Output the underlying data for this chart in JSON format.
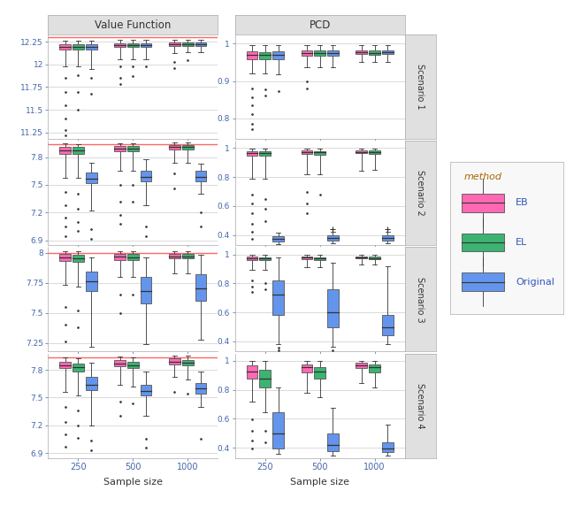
{
  "scenarios": [
    "Scenario 1",
    "Scenario 2",
    "Scenario 3",
    "Scenario 4"
  ],
  "sample_sizes": [
    250,
    500,
    1000
  ],
  "methods": [
    "EB",
    "EL",
    "Original"
  ],
  "colors": {
    "EB": "#FF69B4",
    "EL": "#3CB371",
    "Original": "#6495ED"
  },
  "red_line": {
    "Scenario 1": 12.295,
    "Scenario 2": 7.935,
    "Scenario 3": 8.0,
    "Scenario 4": 7.935
  },
  "vf_ylims": {
    "Scenario 1": [
      11.18,
      12.33
    ],
    "Scenario 2": [
      6.85,
      7.975
    ],
    "Scenario 3": [
      7.18,
      8.045
    ],
    "Scenario 4": [
      6.85,
      7.975
    ]
  },
  "pcd_ylims": {
    "Scenario 1": [
      0.745,
      1.025
    ],
    "Scenario 2": [
      0.33,
      1.05
    ],
    "Scenario 3": [
      0.33,
      1.05
    ],
    "Scenario 4": [
      0.33,
      1.05
    ]
  },
  "vf_yticks": {
    "Scenario 1": [
      11.25,
      11.5,
      11.75,
      12.0,
      12.25
    ],
    "Scenario 2": [
      6.9,
      7.2,
      7.5,
      7.8
    ],
    "Scenario 3": [
      7.25,
      7.5,
      7.75,
      8.0
    ],
    "Scenario 4": [
      6.9,
      7.2,
      7.5,
      7.8
    ]
  },
  "pcd_yticks": {
    "Scenario 1": [
      0.8,
      0.9,
      1.0
    ],
    "Scenario 2": [
      0.4,
      0.6,
      0.8,
      1.0
    ],
    "Scenario 3": [
      0.4,
      0.6,
      0.8,
      1.0
    ],
    "Scenario 4": [
      0.4,
      0.6,
      0.8,
      1.0
    ]
  },
  "vf_data": {
    "Scenario 1": {
      "250": {
        "EB": {
          "q1": 12.16,
          "med": 12.19,
          "q3": 12.22,
          "whislo": 11.98,
          "whishi": 12.26,
          "fliers_lo": [
            11.85,
            11.7,
            11.55,
            11.4,
            11.28,
            11.22
          ],
          "fliers_hi": []
        },
        "EL": {
          "q1": 12.16,
          "med": 12.19,
          "q3": 12.22,
          "whislo": 11.98,
          "whishi": 12.26,
          "fliers_lo": [
            11.88,
            11.7,
            11.5
          ],
          "fliers_hi": []
        },
        "Original": {
          "q1": 12.16,
          "med": 12.19,
          "q3": 12.22,
          "whislo": 11.95,
          "whishi": 12.26,
          "fliers_lo": [
            11.85,
            11.68
          ],
          "fliers_hi": []
        }
      },
      "500": {
        "EB": {
          "q1": 12.19,
          "med": 12.21,
          "q3": 12.23,
          "whislo": 12.06,
          "whishi": 12.27,
          "fliers_lo": [
            11.98,
            11.85,
            11.78
          ],
          "fliers_hi": []
        },
        "EL": {
          "q1": 12.19,
          "med": 12.21,
          "q3": 12.23,
          "whislo": 12.06,
          "whishi": 12.27,
          "fliers_lo": [
            11.98,
            11.87
          ],
          "fliers_hi": []
        },
        "Original": {
          "q1": 12.19,
          "med": 12.21,
          "q3": 12.23,
          "whislo": 12.06,
          "whishi": 12.27,
          "fliers_lo": [
            11.98
          ],
          "fliers_hi": []
        }
      },
      "1000": {
        "EB": {
          "q1": 12.2,
          "med": 12.22,
          "q3": 12.24,
          "whislo": 12.12,
          "whishi": 12.27,
          "fliers_lo": [
            12.03,
            11.96
          ],
          "fliers_hi": []
        },
        "EL": {
          "q1": 12.2,
          "med": 12.22,
          "q3": 12.24,
          "whislo": 12.13,
          "whishi": 12.27,
          "fliers_lo": [
            12.05
          ],
          "fliers_hi": []
        },
        "Original": {
          "q1": 12.2,
          "med": 12.22,
          "q3": 12.24,
          "whislo": 12.13,
          "whishi": 12.27,
          "fliers_lo": [],
          "fliers_hi": []
        }
      }
    },
    "Scenario 2": {
      "250": {
        "EB": {
          "q1": 7.83,
          "med": 7.87,
          "q3": 7.91,
          "whislo": 7.58,
          "whishi": 7.95,
          "fliers_lo": [
            7.42,
            7.28,
            7.15,
            7.05,
            6.95
          ],
          "fliers_hi": []
        },
        "EL": {
          "q1": 7.83,
          "med": 7.87,
          "q3": 7.91,
          "whislo": 7.58,
          "whishi": 7.94,
          "fliers_lo": [
            7.4,
            7.24,
            7.1,
            7.0
          ],
          "fliers_hi": []
        },
        "Original": {
          "q1": 7.52,
          "med": 7.57,
          "q3": 7.63,
          "whislo": 7.22,
          "whishi": 7.74,
          "fliers_lo": [
            7.02,
            6.92
          ],
          "fliers_hi": []
        }
      },
      "500": {
        "EB": {
          "q1": 7.86,
          "med": 7.89,
          "q3": 7.92,
          "whislo": 7.65,
          "whishi": 7.95,
          "fliers_lo": [
            7.5,
            7.32,
            7.18,
            7.08
          ],
          "fliers_hi": []
        },
        "EL": {
          "q1": 7.86,
          "med": 7.89,
          "q3": 7.92,
          "whislo": 7.65,
          "whishi": 7.95,
          "fliers_lo": [
            7.5,
            7.32
          ],
          "fliers_hi": []
        },
        "Original": {
          "q1": 7.54,
          "med": 7.59,
          "q3": 7.65,
          "whislo": 7.28,
          "whishi": 7.78,
          "fliers_lo": [
            7.05,
            6.95
          ],
          "fliers_hi": []
        }
      },
      "1000": {
        "EB": {
          "q1": 7.88,
          "med": 7.91,
          "q3": 7.93,
          "whislo": 7.74,
          "whishi": 7.96,
          "fliers_lo": [
            7.62,
            7.46
          ],
          "fliers_hi": []
        },
        "EL": {
          "q1": 7.88,
          "med": 7.91,
          "q3": 7.93,
          "whislo": 7.74,
          "whishi": 7.96,
          "fliers_lo": [],
          "fliers_hi": []
        },
        "Original": {
          "q1": 7.54,
          "med": 7.59,
          "q3": 7.65,
          "whislo": 7.4,
          "whishi": 7.73,
          "fliers_lo": [
            7.2,
            7.05
          ],
          "fliers_hi": []
        }
      }
    },
    "Scenario 3": {
      "250": {
        "EB": {
          "q1": 7.93,
          "med": 7.96,
          "q3": 7.99,
          "whislo": 7.73,
          "whishi": 8.01,
          "fliers_lo": [
            7.55,
            7.4,
            7.26
          ],
          "fliers_hi": []
        },
        "EL": {
          "q1": 7.92,
          "med": 7.95,
          "q3": 7.98,
          "whislo": 7.72,
          "whishi": 8.01,
          "fliers_lo": [
            7.52,
            7.38
          ],
          "fliers_hi": []
        },
        "Original": {
          "q1": 7.68,
          "med": 7.76,
          "q3": 7.84,
          "whislo": 7.22,
          "whishi": 7.96,
          "fliers_lo": [
            7.06,
            6.96
          ],
          "fliers_hi": []
        }
      },
      "500": {
        "EB": {
          "q1": 7.94,
          "med": 7.97,
          "q3": 7.99,
          "whislo": 7.8,
          "whishi": 8.01,
          "fliers_lo": [
            7.65,
            7.5
          ],
          "fliers_hi": []
        },
        "EL": {
          "q1": 7.94,
          "med": 7.96,
          "q3": 7.99,
          "whislo": 7.8,
          "whishi": 8.01,
          "fliers_lo": [
            7.65
          ],
          "fliers_hi": []
        },
        "Original": {
          "q1": 7.58,
          "med": 7.68,
          "q3": 7.8,
          "whislo": 7.24,
          "whishi": 7.96,
          "fliers_lo": [
            7.06,
            6.93
          ],
          "fliers_hi": []
        }
      },
      "1000": {
        "EB": {
          "q1": 7.95,
          "med": 7.97,
          "q3": 7.99,
          "whislo": 7.83,
          "whishi": 8.01,
          "fliers_lo": [],
          "fliers_hi": []
        },
        "EL": {
          "q1": 7.95,
          "med": 7.97,
          "q3": 7.99,
          "whislo": 7.83,
          "whishi": 8.01,
          "fliers_lo": [],
          "fliers_hi": []
        },
        "Original": {
          "q1": 7.6,
          "med": 7.7,
          "q3": 7.82,
          "whislo": 7.28,
          "whishi": 7.98,
          "fliers_lo": [
            7.06
          ],
          "fliers_hi": []
        }
      }
    },
    "Scenario 4": {
      "250": {
        "EB": {
          "q1": 7.82,
          "med": 7.85,
          "q3": 7.89,
          "whislo": 7.56,
          "whishi": 7.93,
          "fliers_lo": [
            7.4,
            7.24,
            7.1,
            6.97
          ],
          "fliers_hi": []
        },
        "EL": {
          "q1": 7.78,
          "med": 7.83,
          "q3": 7.87,
          "whislo": 7.52,
          "whishi": 7.92,
          "fliers_lo": [
            7.36,
            7.2,
            7.07
          ],
          "fliers_hi": []
        },
        "Original": {
          "q1": 7.58,
          "med": 7.64,
          "q3": 7.72,
          "whislo": 7.2,
          "whishi": 7.88,
          "fliers_lo": [
            7.04,
            6.93
          ],
          "fliers_hi": []
        }
      },
      "500": {
        "EB": {
          "q1": 7.84,
          "med": 7.87,
          "q3": 7.91,
          "whislo": 7.64,
          "whishi": 7.94,
          "fliers_lo": [
            7.46,
            7.3
          ],
          "fliers_hi": []
        },
        "EL": {
          "q1": 7.82,
          "med": 7.85,
          "q3": 7.89,
          "whislo": 7.62,
          "whishi": 7.93,
          "fliers_lo": [
            7.44
          ],
          "fliers_hi": []
        },
        "Original": {
          "q1": 7.52,
          "med": 7.57,
          "q3": 7.64,
          "whislo": 7.3,
          "whishi": 7.78,
          "fliers_lo": [
            7.06,
            6.96
          ],
          "fliers_hi": []
        }
      },
      "1000": {
        "EB": {
          "q1": 7.86,
          "med": 7.89,
          "q3": 7.92,
          "whislo": 7.72,
          "whishi": 7.95,
          "fliers_lo": [
            7.56
          ],
          "fliers_hi": []
        },
        "EL": {
          "q1": 7.85,
          "med": 7.88,
          "q3": 7.91,
          "whislo": 7.7,
          "whishi": 7.95,
          "fliers_lo": [
            7.54
          ],
          "fliers_hi": []
        },
        "Original": {
          "q1": 7.54,
          "med": 7.6,
          "q3": 7.66,
          "whislo": 7.4,
          "whishi": 7.78,
          "fliers_lo": [
            7.06
          ],
          "fliers_hi": []
        }
      }
    }
  },
  "pcd_data": {
    "Scenario 1": {
      "250": {
        "EB": {
          "q1": 0.958,
          "med": 0.97,
          "q3": 0.98,
          "whislo": 0.92,
          "whishi": 0.997,
          "fliers_lo": [
            0.88,
            0.856,
            0.835,
            0.812,
            0.786,
            0.77
          ],
          "fliers_hi": []
        },
        "EL": {
          "q1": 0.958,
          "med": 0.969,
          "q3": 0.978,
          "whislo": 0.92,
          "whishi": 0.996,
          "fliers_lo": [
            0.878,
            0.86
          ],
          "fliers_hi": []
        },
        "Original": {
          "q1": 0.958,
          "med": 0.97,
          "q3": 0.98,
          "whislo": 0.918,
          "whishi": 0.997,
          "fliers_lo": [
            0.874
          ],
          "fliers_hi": []
        }
      },
      "500": {
        "EB": {
          "q1": 0.968,
          "med": 0.975,
          "q3": 0.982,
          "whislo": 0.938,
          "whishi": 0.997,
          "fliers_lo": [
            0.9,
            0.88
          ],
          "fliers_hi": []
        },
        "EL": {
          "q1": 0.967,
          "med": 0.974,
          "q3": 0.981,
          "whislo": 0.938,
          "whishi": 0.996,
          "fliers_lo": [],
          "fliers_hi": []
        },
        "Original": {
          "q1": 0.968,
          "med": 0.975,
          "q3": 0.982,
          "whislo": 0.938,
          "whishi": 0.997,
          "fliers_lo": [],
          "fliers_hi": []
        }
      },
      "1000": {
        "EB": {
          "q1": 0.972,
          "med": 0.977,
          "q3": 0.983,
          "whislo": 0.95,
          "whishi": 0.997,
          "fliers_lo": [],
          "fliers_hi": []
        },
        "EL": {
          "q1": 0.971,
          "med": 0.976,
          "q3": 0.982,
          "whislo": 0.95,
          "whishi": 0.996,
          "fliers_lo": [],
          "fliers_hi": []
        },
        "Original": {
          "q1": 0.972,
          "med": 0.977,
          "q3": 0.983,
          "whislo": 0.95,
          "whishi": 0.997,
          "fliers_lo": [],
          "fliers_hi": []
        }
      }
    },
    "Scenario 2": {
      "250": {
        "EB": {
          "q1": 0.95,
          "med": 0.968,
          "q3": 0.98,
          "whislo": 0.79,
          "whishi": 0.997,
          "fliers_lo": [
            0.68,
            0.618,
            0.548,
            0.48,
            0.42,
            0.375
          ],
          "fliers_hi": []
        },
        "EL": {
          "q1": 0.948,
          "med": 0.964,
          "q3": 0.978,
          "whislo": 0.79,
          "whishi": 0.996,
          "fliers_lo": [
            0.648,
            0.578,
            0.498
          ],
          "fliers_hi": []
        },
        "Original": {
          "q1": 0.355,
          "med": 0.374,
          "q3": 0.394,
          "whislo": 0.338,
          "whishi": 0.414,
          "fliers_lo": [],
          "fliers_hi": []
        }
      },
      "500": {
        "EB": {
          "q1": 0.958,
          "med": 0.972,
          "q3": 0.982,
          "whislo": 0.822,
          "whishi": 0.997,
          "fliers_lo": [
            0.7,
            0.618,
            0.548
          ],
          "fliers_hi": []
        },
        "EL": {
          "q1": 0.956,
          "med": 0.969,
          "q3": 0.98,
          "whislo": 0.82,
          "whishi": 0.996,
          "fliers_lo": [
            0.678
          ],
          "fliers_hi": []
        },
        "Original": {
          "q1": 0.362,
          "med": 0.377,
          "q3": 0.397,
          "whislo": 0.342,
          "whishi": 0.42,
          "fliers_lo": [],
          "fliers_hi": [
            0.44
          ]
        }
      },
      "1000": {
        "EB": {
          "q1": 0.963,
          "med": 0.974,
          "q3": 0.983,
          "whislo": 0.846,
          "whishi": 0.997,
          "fliers_lo": [],
          "fliers_hi": []
        },
        "EL": {
          "q1": 0.961,
          "med": 0.972,
          "q3": 0.981,
          "whislo": 0.847,
          "whishi": 0.996,
          "fliers_lo": [],
          "fliers_hi": []
        },
        "Original": {
          "q1": 0.364,
          "med": 0.379,
          "q3": 0.399,
          "whislo": 0.344,
          "whishi": 0.424,
          "fliers_lo": [],
          "fliers_hi": [
            0.44
          ]
        }
      }
    },
    "Scenario 3": {
      "250": {
        "EB": {
          "q1": 0.964,
          "med": 0.975,
          "q3": 0.984,
          "whislo": 0.895,
          "whishi": 0.998,
          "fliers_lo": [
            0.82,
            0.778,
            0.742
          ],
          "fliers_hi": []
        },
        "EL": {
          "q1": 0.961,
          "med": 0.971,
          "q3": 0.981,
          "whislo": 0.891,
          "whishi": 0.997,
          "fliers_lo": [
            0.8,
            0.76
          ],
          "fliers_hi": []
        },
        "Original": {
          "q1": 0.58,
          "med": 0.72,
          "q3": 0.82,
          "whislo": 0.38,
          "whishi": 0.978,
          "fliers_lo": [
            0.358,
            0.34
          ],
          "fliers_hi": []
        }
      },
      "500": {
        "EB": {
          "q1": 0.968,
          "med": 0.977,
          "q3": 0.985,
          "whislo": 0.913,
          "whishi": 0.998,
          "fliers_lo": [],
          "fliers_hi": []
        },
        "EL": {
          "q1": 0.964,
          "med": 0.974,
          "q3": 0.982,
          "whislo": 0.911,
          "whishi": 0.997,
          "fliers_lo": [],
          "fliers_hi": []
        },
        "Original": {
          "q1": 0.5,
          "med": 0.6,
          "q3": 0.76,
          "whislo": 0.36,
          "whishi": 0.94,
          "fliers_lo": [
            0.34
          ],
          "fliers_hi": []
        }
      },
      "1000": {
        "EB": {
          "q1": 0.971,
          "med": 0.979,
          "q3": 0.987,
          "whislo": 0.93,
          "whishi": 0.998,
          "fliers_lo": [],
          "fliers_hi": []
        },
        "EL": {
          "q1": 0.969,
          "med": 0.976,
          "q3": 0.984,
          "whislo": 0.929,
          "whishi": 0.997,
          "fliers_lo": [],
          "fliers_hi": []
        },
        "Original": {
          "q1": 0.44,
          "med": 0.5,
          "q3": 0.58,
          "whislo": 0.38,
          "whishi": 0.92,
          "fliers_lo": [],
          "fliers_hi": []
        }
      }
    },
    "Scenario 4": {
      "250": {
        "EB": {
          "q1": 0.878,
          "med": 0.928,
          "q3": 0.968,
          "whislo": 0.72,
          "whishi": 0.997,
          "fliers_lo": [
            0.598,
            0.518,
            0.448,
            0.398
          ],
          "fliers_hi": []
        },
        "EL": {
          "q1": 0.818,
          "med": 0.878,
          "q3": 0.938,
          "whislo": 0.648,
          "whishi": 0.997,
          "fliers_lo": [
            0.518,
            0.438
          ],
          "fliers_hi": []
        },
        "Original": {
          "q1": 0.398,
          "med": 0.498,
          "q3": 0.648,
          "whislo": 0.358,
          "whishi": 0.818,
          "fliers_lo": [],
          "fliers_hi": []
        }
      },
      "500": {
        "EB": {
          "q1": 0.918,
          "med": 0.958,
          "q3": 0.977,
          "whislo": 0.778,
          "whishi": 0.998,
          "fliers_lo": [],
          "fliers_hi": []
        },
        "EL": {
          "q1": 0.878,
          "med": 0.928,
          "q3": 0.958,
          "whislo": 0.748,
          "whishi": 0.997,
          "fliers_lo": [],
          "fliers_hi": []
        },
        "Original": {
          "q1": 0.378,
          "med": 0.418,
          "q3": 0.498,
          "whislo": 0.348,
          "whishi": 0.678,
          "fliers_lo": [],
          "fliers_hi": []
        }
      },
      "1000": {
        "EB": {
          "q1": 0.948,
          "med": 0.968,
          "q3": 0.984,
          "whislo": 0.848,
          "whishi": 0.998,
          "fliers_lo": [],
          "fliers_hi": []
        },
        "EL": {
          "q1": 0.918,
          "med": 0.954,
          "q3": 0.974,
          "whislo": 0.818,
          "whishi": 0.997,
          "fliers_lo": [],
          "fliers_hi": []
        },
        "Original": {
          "q1": 0.368,
          "med": 0.398,
          "q3": 0.438,
          "whislo": 0.344,
          "whishi": 0.558,
          "fliers_lo": [],
          "fliers_hi": []
        }
      }
    }
  }
}
